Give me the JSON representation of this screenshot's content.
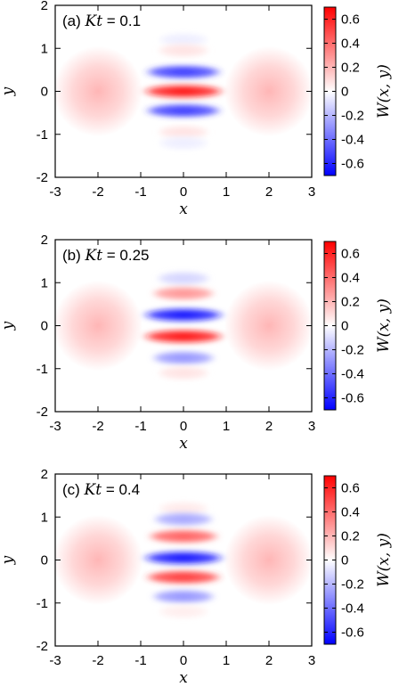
{
  "chart_data": [
    {
      "type": "heatmap",
      "panel_label": "(a)",
      "title_var": "Kt",
      "title_value": "0.1",
      "xlabel": "x",
      "ylabel": "y",
      "colorbar_label": "W(x, y)",
      "xlim": [
        -3,
        3
      ],
      "ylim": [
        -2,
        2
      ],
      "xticks": [
        "-3",
        "-2",
        "-1",
        "0",
        "1",
        "2",
        "3"
      ],
      "yticks": [
        "-2",
        "-1",
        "0",
        "1",
        "2"
      ],
      "cbar_range": [
        -0.7,
        0.7
      ],
      "cbar_ticks": [
        "0.6",
        "0.4",
        "0.2",
        "0",
        "-0.2",
        "-0.4",
        "-0.6"
      ],
      "lobes": [
        {
          "x": -2,
          "y": 0,
          "value": 0.2
        },
        {
          "x": 2,
          "y": 0,
          "value": 0.2
        }
      ],
      "fringes": [
        {
          "y": 1.2,
          "value": -0.05
        },
        {
          "y": 0.95,
          "value": 0.08
        },
        {
          "y": 0.45,
          "value": -0.55
        },
        {
          "y": 0.0,
          "value": 0.65
        },
        {
          "y": -0.45,
          "value": -0.55
        },
        {
          "y": -0.95,
          "value": 0.08
        },
        {
          "y": -1.2,
          "value": -0.05
        }
      ]
    },
    {
      "type": "heatmap",
      "panel_label": "(b)",
      "title_var": "Kt",
      "title_value": "0.25",
      "xlabel": "x",
      "ylabel": "y",
      "colorbar_label": "W(x, y)",
      "xlim": [
        -3,
        3
      ],
      "ylim": [
        -2,
        2
      ],
      "xticks": [
        "-3",
        "-2",
        "-1",
        "0",
        "1",
        "2",
        "3"
      ],
      "yticks": [
        "-2",
        "-1",
        "0",
        "1",
        "2"
      ],
      "cbar_range": [
        -0.7,
        0.7
      ],
      "cbar_ticks": [
        "0.6",
        "0.4",
        "0.2",
        "0",
        "-0.2",
        "-0.4",
        "-0.6"
      ],
      "lobes": [
        {
          "x": -2,
          "y": 0,
          "value": 0.2
        },
        {
          "x": 2,
          "y": 0,
          "value": 0.2
        }
      ],
      "fringes": [
        {
          "y": 1.1,
          "value": -0.12
        },
        {
          "y": 0.75,
          "value": 0.3
        },
        {
          "y": 0.25,
          "value": -0.65
        },
        {
          "y": -0.25,
          "value": 0.65
        },
        {
          "y": -0.75,
          "value": -0.3
        },
        {
          "y": -1.1,
          "value": 0.08
        }
      ]
    },
    {
      "type": "heatmap",
      "panel_label": "(c)",
      "title_var": "Kt",
      "title_value": "0.4",
      "xlabel": "x",
      "ylabel": "y",
      "colorbar_label": "W(x, y)",
      "xlim": [
        -3,
        3
      ],
      "ylim": [
        -2,
        2
      ],
      "xticks": [
        "-3",
        "-2",
        "-1",
        "0",
        "1",
        "2",
        "3"
      ],
      "yticks": [
        "-2",
        "-1",
        "0",
        "1",
        "2"
      ],
      "cbar_range": [
        -0.7,
        0.7
      ],
      "cbar_ticks": [
        "0.6",
        "0.4",
        "0.2",
        "0",
        "-0.2",
        "-0.4",
        "-0.6"
      ],
      "lobes": [
        {
          "x": -2,
          "y": 0,
          "value": 0.2
        },
        {
          "x": 2,
          "y": 0,
          "value": 0.2
        }
      ],
      "fringes": [
        {
          "y": 1.2,
          "value": 0.06
        },
        {
          "y": 0.95,
          "value": -0.25
        },
        {
          "y": 0.55,
          "value": 0.45
        },
        {
          "y": 0.05,
          "value": -0.65
        },
        {
          "y": -0.4,
          "value": 0.55
        },
        {
          "y": -0.85,
          "value": -0.3
        },
        {
          "y": -1.2,
          "value": 0.05
        }
      ]
    }
  ]
}
